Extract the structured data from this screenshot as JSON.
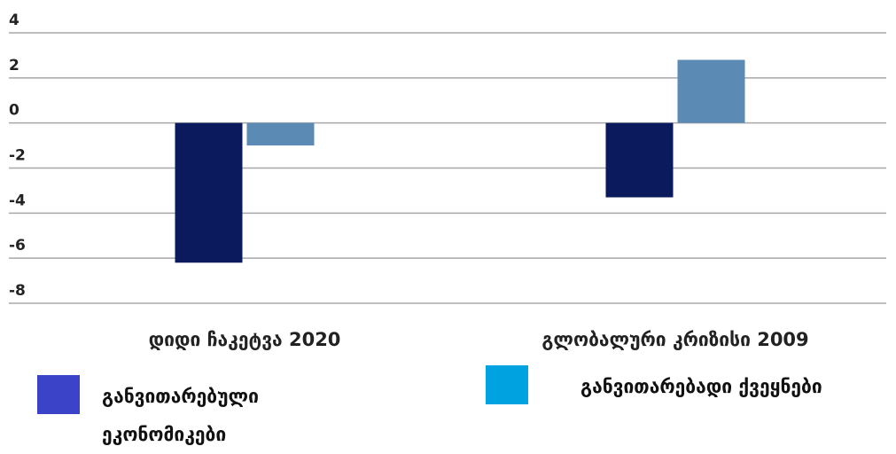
{
  "chart_data": {
    "type": "bar",
    "categories": [
      "დიდი ჩაკეტვა  2020",
      "გლობალური კრიზისი 2009"
    ],
    "series": [
      {
        "name": "განვითარებული ეკონომიკები",
        "color": "#0b1a5c",
        "legend_color": "#3b44c9",
        "values": [
          -6.2,
          -3.3
        ]
      },
      {
        "name": "განვითარებადი ქვეყნები",
        "color": "#5b8ab5",
        "legend_color": "#00a2e0",
        "values": [
          -1.0,
          2.8
        ]
      }
    ],
    "ylim": [
      -8,
      4
    ],
    "yticks": [
      -8,
      -6,
      -4,
      -2,
      0,
      2,
      4
    ],
    "grid": true
  }
}
